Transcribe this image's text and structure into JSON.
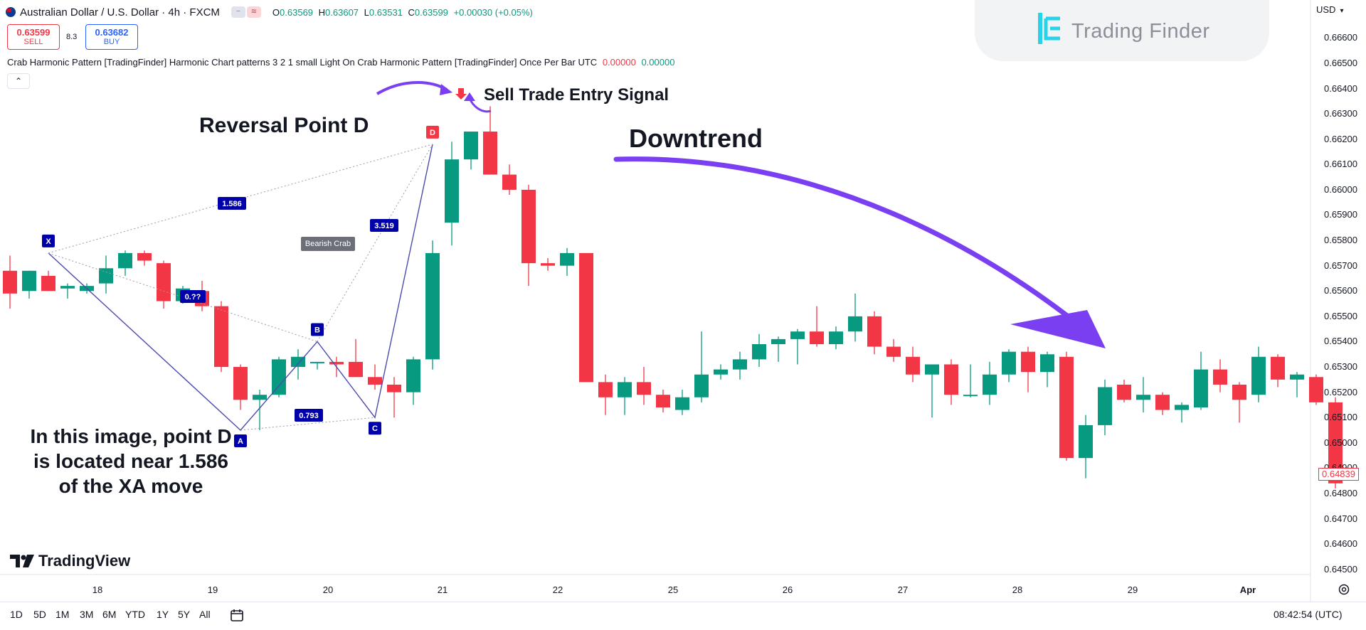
{
  "header": {
    "symbol_title": "Australian Dollar / U.S. Dollar · 4h · FXCM",
    "ohlc": {
      "o_label": "O",
      "o": "0.63569",
      "h_label": "H",
      "h": "0.63607",
      "l_label": "L",
      "l": "0.63531",
      "c_label": "C",
      "c": "0.63599",
      "change": "+0.00030 (+0.05%)"
    },
    "sell_price": "0.63599",
    "sell_label": "SELL",
    "spread": "8.3",
    "buy_price": "0.63682",
    "buy_label": "BUY",
    "indicator_text": "Crab Harmonic Pattern [TradingFinder] Harmonic Chart patterns 3 2 1 small Light On Crab Harmonic Pattern [TradingFinder] Once Per Bar UTC",
    "indicator_value_1": "0.00000",
    "indicator_value_2": "0.00000",
    "collapse_icon": "chevron-up-icon",
    "currency": "USD"
  },
  "branding": {
    "watermark": "Trading Finder",
    "platform": "TradingView"
  },
  "annotations": {
    "reversal": "Reversal Point D",
    "sell_signal": "Sell Trade Entry Signal",
    "downtrend": "Downtrend",
    "explanation": "In this image, point D is located near 1.586 of the XA move"
  },
  "pattern": {
    "name": "Bearish Crab",
    "ratio_xb": "1.586",
    "ratio_ab": "0.793",
    "ratio_bd": "3.519",
    "ratio_xb_hidden": "0.??",
    "points": {
      "X": "X",
      "A": "A",
      "B": "B",
      "C": "C",
      "D": "D"
    }
  },
  "footer": {
    "ranges": [
      "1D",
      "5D",
      "1M",
      "3M",
      "6M",
      "YTD",
      "1Y",
      "5Y",
      "All"
    ],
    "clock": "08:42:54 (UTC)"
  },
  "colors": {
    "up": "#089981",
    "down": "#f23645",
    "pattern": "#0000aa",
    "arrow": "#7b3ff2",
    "grid": "#f0f3fa"
  },
  "chart_data": {
    "type": "candlestick",
    "title": "",
    "last_price": "0.64839",
    "y_ticks": [
      "0.66600",
      "0.66500",
      "0.66400",
      "0.66300",
      "0.66200",
      "0.66100",
      "0.66000",
      "0.65900",
      "0.65800",
      "0.65700",
      "0.65600",
      "0.65500",
      "0.65400",
      "0.65300",
      "0.65200",
      "0.65100",
      "0.65000",
      "0.64900",
      "0.64800",
      "0.64700",
      "0.64600",
      "0.64500"
    ],
    "ylim": [
      0.6446,
      0.6666
    ],
    "x_ticks": [
      "18",
      "19",
      "20",
      "21",
      "22",
      "25",
      "26",
      "27",
      "28",
      "29",
      "Apr"
    ],
    "candles": [
      {
        "o": 0.6568,
        "h": 0.6574,
        "l": 0.6553,
        "c": 0.6559
      },
      {
        "o": 0.656,
        "h": 0.6568,
        "l": 0.6557,
        "c": 0.6568
      },
      {
        "o": 0.6566,
        "h": 0.6568,
        "l": 0.656,
        "c": 0.656
      },
      {
        "o": 0.6561,
        "h": 0.6563,
        "l": 0.6557,
        "c": 0.6562
      },
      {
        "o": 0.656,
        "h": 0.6563,
        "l": 0.6559,
        "c": 0.6562
      },
      {
        "o": 0.6563,
        "h": 0.6574,
        "l": 0.6559,
        "c": 0.6569
      },
      {
        "o": 0.6569,
        "h": 0.6576,
        "l": 0.6566,
        "c": 0.6575
      },
      {
        "o": 0.6575,
        "h": 0.6576,
        "l": 0.657,
        "c": 0.6572
      },
      {
        "o": 0.6571,
        "h": 0.6572,
        "l": 0.6553,
        "c": 0.6556
      },
      {
        "o": 0.6556,
        "h": 0.6562,
        "l": 0.6555,
        "c": 0.6561
      },
      {
        "o": 0.656,
        "h": 0.6564,
        "l": 0.6552,
        "c": 0.6554
      },
      {
        "o": 0.6554,
        "h": 0.6556,
        "l": 0.6528,
        "c": 0.653
      },
      {
        "o": 0.653,
        "h": 0.6531,
        "l": 0.6513,
        "c": 0.6517
      },
      {
        "o": 0.6517,
        "h": 0.6521,
        "l": 0.6505,
        "c": 0.6519
      },
      {
        "o": 0.6519,
        "h": 0.6534,
        "l": 0.6518,
        "c": 0.6533
      },
      {
        "o": 0.653,
        "h": 0.6537,
        "l": 0.6525,
        "c": 0.6534
      },
      {
        "o": 0.6532,
        "h": 0.6532,
        "l": 0.6529,
        "c": 0.6532
      },
      {
        "o": 0.6532,
        "h": 0.6534,
        "l": 0.6526,
        "c": 0.6531
      },
      {
        "o": 0.6532,
        "h": 0.6541,
        "l": 0.6526,
        "c": 0.6526
      },
      {
        "o": 0.6526,
        "h": 0.6531,
        "l": 0.6521,
        "c": 0.6523
      },
      {
        "o": 0.6523,
        "h": 0.6526,
        "l": 0.651,
        "c": 0.652
      },
      {
        "o": 0.652,
        "h": 0.6534,
        "l": 0.6515,
        "c": 0.6533
      },
      {
        "o": 0.6533,
        "h": 0.658,
        "l": 0.6529,
        "c": 0.6575
      },
      {
        "o": 0.6587,
        "h": 0.6619,
        "l": 0.6578,
        "c": 0.6612
      },
      {
        "o": 0.6612,
        "h": 0.6623,
        "l": 0.6608,
        "c": 0.6623
      },
      {
        "o": 0.6623,
        "h": 0.6633,
        "l": 0.6606,
        "c": 0.6606
      },
      {
        "o": 0.6606,
        "h": 0.661,
        "l": 0.6598,
        "c": 0.66
      },
      {
        "o": 0.66,
        "h": 0.6602,
        "l": 0.6562,
        "c": 0.6571
      },
      {
        "o": 0.6571,
        "h": 0.6573,
        "l": 0.6568,
        "c": 0.657
      },
      {
        "o": 0.657,
        "h": 0.6577,
        "l": 0.6566,
        "c": 0.6575
      },
      {
        "o": 0.6575,
        "h": 0.6575,
        "l": 0.6524,
        "c": 0.6524
      },
      {
        "o": 0.6524,
        "h": 0.6527,
        "l": 0.6511,
        "c": 0.6518
      },
      {
        "o": 0.6518,
        "h": 0.6526,
        "l": 0.6511,
        "c": 0.6524
      },
      {
        "o": 0.6524,
        "h": 0.653,
        "l": 0.6515,
        "c": 0.6519
      },
      {
        "o": 0.6519,
        "h": 0.6521,
        "l": 0.6512,
        "c": 0.6514
      },
      {
        "o": 0.6513,
        "h": 0.6521,
        "l": 0.6511,
        "c": 0.6518
      },
      {
        "o": 0.6518,
        "h": 0.6544,
        "l": 0.6516,
        "c": 0.6527
      },
      {
        "o": 0.6527,
        "h": 0.6531,
        "l": 0.6525,
        "c": 0.6529
      },
      {
        "o": 0.6529,
        "h": 0.6536,
        "l": 0.6525,
        "c": 0.6533
      },
      {
        "o": 0.6533,
        "h": 0.6543,
        "l": 0.653,
        "c": 0.6539
      },
      {
        "o": 0.6539,
        "h": 0.6542,
        "l": 0.6532,
        "c": 0.6541
      },
      {
        "o": 0.6541,
        "h": 0.6545,
        "l": 0.6531,
        "c": 0.6544
      },
      {
        "o": 0.6544,
        "h": 0.6554,
        "l": 0.6538,
        "c": 0.6539
      },
      {
        "o": 0.6539,
        "h": 0.6546,
        "l": 0.6537,
        "c": 0.6544
      },
      {
        "o": 0.6544,
        "h": 0.6559,
        "l": 0.654,
        "c": 0.655
      },
      {
        "o": 0.655,
        "h": 0.6552,
        "l": 0.6535,
        "c": 0.6538
      },
      {
        "o": 0.6538,
        "h": 0.6541,
        "l": 0.6532,
        "c": 0.6534
      },
      {
        "o": 0.6534,
        "h": 0.6538,
        "l": 0.6524,
        "c": 0.6527
      },
      {
        "o": 0.6527,
        "h": 0.653,
        "l": 0.651,
        "c": 0.6531
      },
      {
        "o": 0.6531,
        "h": 0.6533,
        "l": 0.6515,
        "c": 0.6519
      },
      {
        "o": 0.6519,
        "h": 0.6531,
        "l": 0.6518,
        "c": 0.6519
      },
      {
        "o": 0.6519,
        "h": 0.6532,
        "l": 0.6515,
        "c": 0.6527
      },
      {
        "o": 0.6527,
        "h": 0.6537,
        "l": 0.6524,
        "c": 0.6536
      },
      {
        "o": 0.6536,
        "h": 0.6538,
        "l": 0.652,
        "c": 0.6528
      },
      {
        "o": 0.6528,
        "h": 0.6536,
        "l": 0.6522,
        "c": 0.6535
      },
      {
        "o": 0.6534,
        "h": 0.6536,
        "l": 0.6493,
        "c": 0.6494
      },
      {
        "o": 0.6494,
        "h": 0.6511,
        "l": 0.6486,
        "c": 0.6507
      },
      {
        "o": 0.6507,
        "h": 0.6525,
        "l": 0.6503,
        "c": 0.6522
      },
      {
        "o": 0.6523,
        "h": 0.6525,
        "l": 0.6516,
        "c": 0.6517
      },
      {
        "o": 0.6517,
        "h": 0.6526,
        "l": 0.6512,
        "c": 0.6519
      },
      {
        "o": 0.6519,
        "h": 0.652,
        "l": 0.6511,
        "c": 0.6513
      },
      {
        "o": 0.6513,
        "h": 0.6516,
        "l": 0.6508,
        "c": 0.6515
      },
      {
        "o": 0.6514,
        "h": 0.6536,
        "l": 0.6513,
        "c": 0.6529
      },
      {
        "o": 0.6529,
        "h": 0.6533,
        "l": 0.652,
        "c": 0.6523
      },
      {
        "o": 0.6523,
        "h": 0.6524,
        "l": 0.6508,
        "c": 0.6517
      },
      {
        "o": 0.6519,
        "h": 0.6538,
        "l": 0.6516,
        "c": 0.6534
      },
      {
        "o": 0.6534,
        "h": 0.6535,
        "l": 0.6522,
        "c": 0.6525
      },
      {
        "o": 0.6525,
        "h": 0.6528,
        "l": 0.6518,
        "c": 0.6527
      },
      {
        "o": 0.6526,
        "h": 0.6527,
        "l": 0.6515,
        "c": 0.6516
      },
      {
        "o": 0.6516,
        "h": 0.6518,
        "l": 0.6482,
        "c": 0.6484
      }
    ],
    "pattern_points": {
      "X": {
        "index": 2,
        "price": 0.6575
      },
      "A": {
        "index": 12,
        "price": 0.6505
      },
      "B": {
        "index": 16,
        "price": 0.654
      },
      "C": {
        "index": 19,
        "price": 0.651
      },
      "D": {
        "index": 22,
        "price": 0.6618
      }
    }
  }
}
